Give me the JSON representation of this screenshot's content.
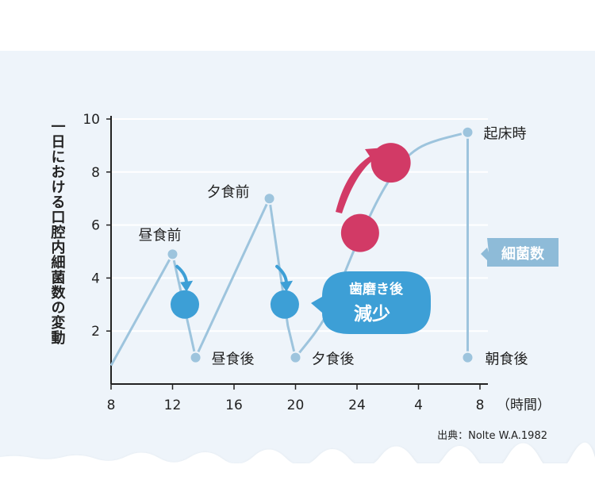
{
  "chart_data": {
    "type": "line",
    "title": "",
    "ylabel": "一日における口腔内細菌数の変動",
    "xlabel": "（時間）",
    "ylim": [
      0,
      10
    ],
    "y_ticks": [
      "2",
      "4",
      "6",
      "8",
      "10"
    ],
    "x_ticks": [
      "8",
      "12",
      "16",
      "20",
      "24",
      "4",
      "8"
    ],
    "x_tick_hours": [
      8,
      12,
      16,
      20,
      24,
      28,
      32
    ],
    "grid": true,
    "series": [
      {
        "name": "細菌数",
        "x": [
          8,
          12,
          13.5,
          18.3,
          19.5,
          20,
          22,
          24,
          26,
          28,
          31.2,
          31.2
        ],
        "y": [
          0.7,
          4.9,
          1.0,
          7.0,
          2.2,
          1.0,
          2.6,
          5.3,
          7.6,
          8.9,
          9.5,
          1.0
        ],
        "color": "#9dc4dd"
      }
    ],
    "annotations": [
      {
        "text": "昼食前",
        "x": 12,
        "y": 4.9
      },
      {
        "text": "昼食後",
        "x": 13.5,
        "y": 1.0
      },
      {
        "text": "夕食前",
        "x": 18.3,
        "y": 7.0
      },
      {
        "text": "夕食後",
        "x": 20,
        "y": 1.0
      },
      {
        "text": "起床時",
        "x": 31.2,
        "y": 9.5
      },
      {
        "text": "朝食後",
        "x": 31.2,
        "y": 1.0
      }
    ],
    "markers": [
      {
        "kind": "decrease",
        "x": 12.8,
        "y": 3.0,
        "color": "#3d9fd6"
      },
      {
        "kind": "decrease",
        "x": 19.3,
        "y": 3.0,
        "color": "#3d9fd6"
      },
      {
        "kind": "increase",
        "x": 24.2,
        "y": 5.7,
        "color": "#d23a66"
      },
      {
        "kind": "increase",
        "x": 26.2,
        "y": 8.35,
        "color": "#d23a66"
      }
    ],
    "callout": {
      "line1": "歯磨き後",
      "line2": "減少"
    },
    "legend_label": "細菌数",
    "source": "出典：Nolte W.A.1982"
  }
}
